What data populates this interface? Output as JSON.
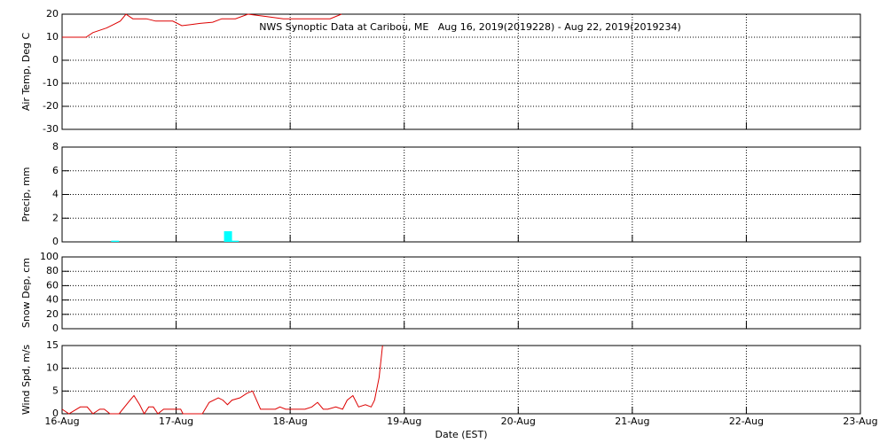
{
  "chart_data": [
    {
      "type": "line",
      "title": "NWS Synoptic Data at Caribou, ME   Aug 16, 2019(2019228) - Aug 22, 2019(2019234)",
      "ylabel": "Air Temp, Deg C",
      "ylim": [
        -30,
        20
      ],
      "yticks": [
        -30,
        -20,
        -10,
        0,
        10,
        20
      ],
      "xlim": [
        0,
        7
      ],
      "xticks": [
        0,
        1,
        2,
        3,
        4,
        5,
        6,
        7
      ],
      "grid": true,
      "series": [
        {
          "color": "#dd0000",
          "x": [
            0,
            0.21,
            0.27,
            0.39,
            0.51,
            0.56,
            0.62,
            0.74,
            0.82,
            0.97,
            1.05,
            1.13,
            1.21,
            1.32,
            1.4,
            1.52,
            1.63,
            1.79,
            1.94,
            2.1,
            2.26,
            2.35,
            2.45
          ],
          "values": [
            10,
            10,
            12,
            14,
            17,
            20,
            18,
            18,
            17,
            17,
            15,
            15.5,
            16,
            16.5,
            18,
            18,
            20,
            19,
            18,
            18,
            18,
            18,
            20
          ]
        }
      ]
    },
    {
      "type": "bar",
      "ylabel": "Precip, mm",
      "ylim": [
        0,
        8
      ],
      "yticks": [
        0,
        2,
        4,
        6,
        8
      ],
      "xlim": [
        0,
        7
      ],
      "xticks": [
        0,
        1,
        2,
        3,
        4,
        5,
        6,
        7
      ],
      "grid": true,
      "series": [
        {
          "color": "#00ffff",
          "x": [
            0.43,
            1.42,
            1.48
          ],
          "values": [
            0.1,
            0.9,
            0.1
          ]
        }
      ]
    },
    {
      "type": "line",
      "ylabel": "Snow Dep, cm",
      "ylim": [
        0,
        100
      ],
      "yticks": [
        0,
        20,
        40,
        60,
        80,
        100
      ],
      "xlim": [
        0,
        7
      ],
      "xticks": [
        0,
        1,
        2,
        3,
        4,
        5,
        6,
        7
      ],
      "grid": true,
      "series": []
    },
    {
      "type": "line",
      "ylabel": "Wind Spd, m/s",
      "ylim": [
        0,
        15
      ],
      "yticks": [
        0,
        5,
        10,
        15
      ],
      "xlim": [
        0,
        7
      ],
      "xticks": [
        {
          "value": 0,
          "label": "16-Aug"
        },
        {
          "value": 1,
          "label": "17-Aug"
        },
        {
          "value": 2,
          "label": "18-Aug"
        },
        {
          "value": 3,
          "label": "19-Aug"
        },
        {
          "value": 4,
          "label": "20-Aug"
        },
        {
          "value": 5,
          "label": "21-Aug"
        },
        {
          "value": 6,
          "label": "22-Aug"
        },
        {
          "value": 7,
          "label": "23-Aug"
        }
      ],
      "xlabel": "Date (EST)",
      "grid": true,
      "series": [
        {
          "color": "#dd0000",
          "x": [
            0,
            0.06,
            0.16,
            0.22,
            0.27,
            0.33,
            0.37,
            0.42,
            0.5,
            0.58,
            0.63,
            0.68,
            0.72,
            0.76,
            0.8,
            0.84,
            0.89,
            0.93,
            0.98,
            1.04,
            1.06,
            1.23,
            1.29,
            1.37,
            1.41,
            1.45,
            1.49,
            1.56,
            1.62,
            1.67,
            1.74,
            1.82,
            1.87,
            1.91,
            1.96,
            2.01,
            2.07,
            2.13,
            2.19,
            2.24,
            2.29,
            2.33,
            2.4,
            2.46,
            2.5,
            2.55,
            2.6,
            2.66,
            2.71,
            2.74,
            2.78,
            2.81
          ],
          "values": [
            1,
            0,
            1.5,
            1.5,
            0,
            1,
            1,
            0,
            0,
            2.5,
            4,
            2,
            0,
            1.5,
            1.5,
            0,
            1,
            1,
            1,
            1,
            0,
            0,
            2.5,
            3.5,
            3,
            2,
            3,
            3.5,
            4.5,
            5,
            1,
            1,
            1,
            1.5,
            1,
            1,
            1,
            1,
            1.5,
            2.5,
            1,
            1,
            1.5,
            1,
            3,
            4,
            1.5,
            2,
            1.5,
            3,
            8,
            15
          ]
        }
      ]
    }
  ]
}
